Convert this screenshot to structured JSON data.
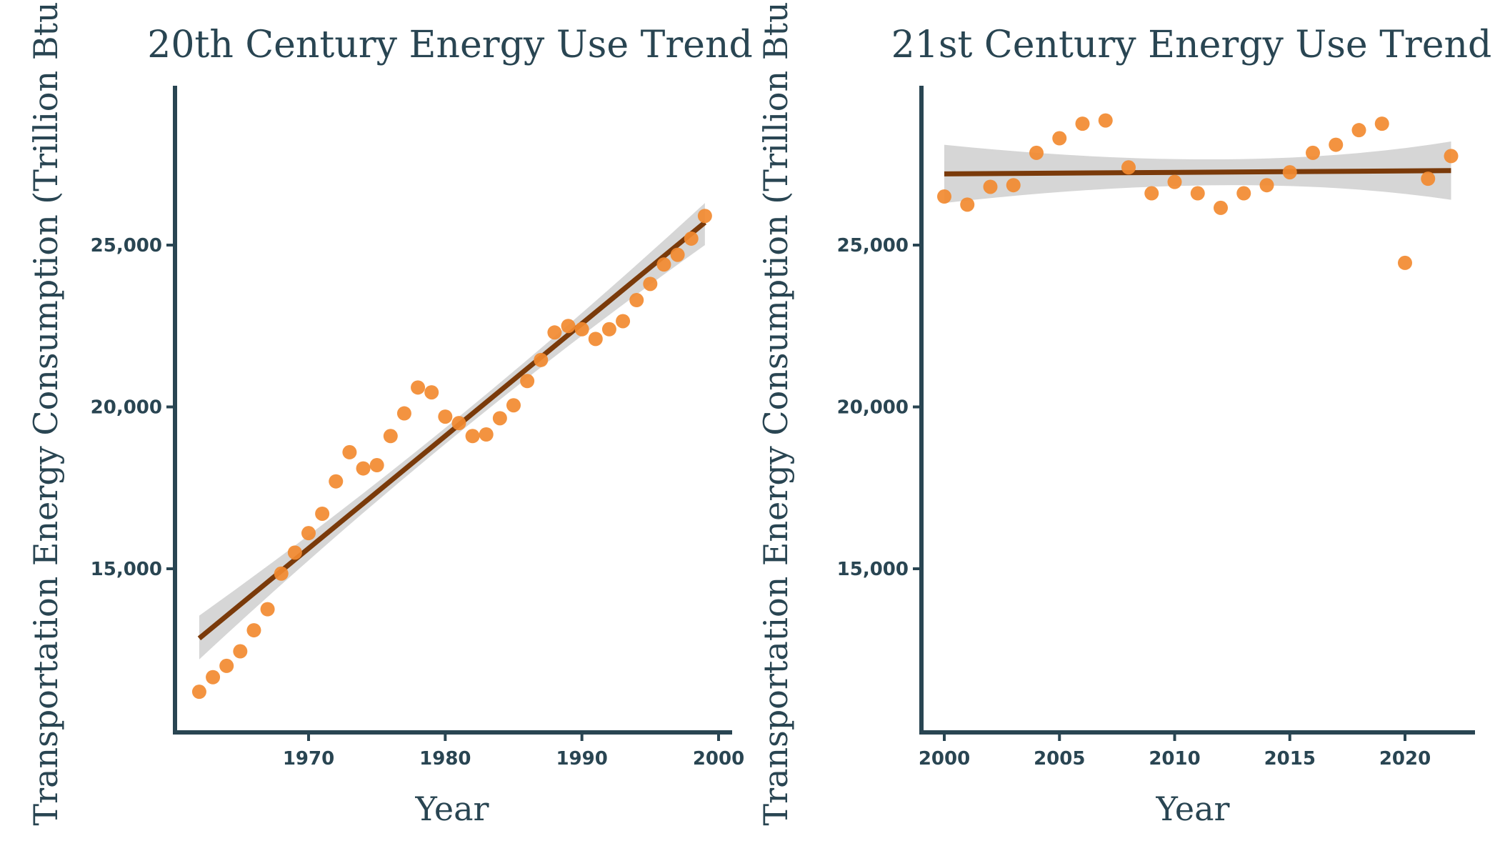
{
  "colors": {
    "point": "#F28A30",
    "trend": "#7A3A0A",
    "band": "#C8C8C8",
    "axis": "#294552",
    "text": "#294552"
  },
  "chart_data": [
    {
      "type": "scatter",
      "title": "20th Century Energy Use Trend",
      "xlabel": "Year",
      "ylabel": "Transportation Energy Consumption (Trillion Btu)",
      "xlim": [
        1961,
        2001
      ],
      "ylim": [
        10000,
        30000
      ],
      "xticks": [
        1970,
        1980,
        1990,
        2000
      ],
      "xtick_labels": [
        "1970",
        "1980",
        "1990",
        "2000"
      ],
      "yticks": [
        15000,
        20000,
        25000
      ],
      "ytick_labels": [
        "15,000",
        "20,000",
        "25,000"
      ],
      "x": [
        1962,
        1963,
        1964,
        1965,
        1966,
        1967,
        1968,
        1969,
        1970,
        1971,
        1972,
        1973,
        1974,
        1975,
        1976,
        1977,
        1978,
        1979,
        1980,
        1981,
        1982,
        1983,
        1984,
        1985,
        1986,
        1987,
        1988,
        1989,
        1990,
        1991,
        1992,
        1993,
        1994,
        1995,
        1996,
        1997,
        1998,
        1999
      ],
      "y": [
        11200,
        11650,
        12000,
        12450,
        13100,
        13750,
        14850,
        15500,
        16100,
        16700,
        17700,
        18600,
        18100,
        18200,
        19100,
        19800,
        20600,
        20450,
        19700,
        19500,
        19100,
        19150,
        19650,
        20050,
        20800,
        21450,
        22300,
        22500,
        22400,
        22100,
        22400,
        22650,
        23300,
        23800,
        24400,
        24700,
        25200,
        25900
      ],
      "trend": {
        "x": [
          1962,
          1999
        ],
        "y": [
          12850,
          25700
        ],
        "band_lower": [
          12200,
          25000
        ],
        "band_upper": [
          13550,
          26300
        ]
      }
    },
    {
      "type": "scatter",
      "title": "21st Century Energy Use Trend",
      "xlabel": "Year",
      "ylabel": "Transportation Energy Consumption (Trillion Btu)",
      "xlim": [
        1999,
        2023
      ],
      "ylim": [
        10000,
        30000
      ],
      "xticks": [
        2000,
        2005,
        2010,
        2015,
        2020
      ],
      "xtick_labels": [
        "2000",
        "2005",
        "2010",
        "2015",
        "2020"
      ],
      "yticks": [
        15000,
        20000,
        25000
      ],
      "ytick_labels": [
        "15,000",
        "20,000",
        "25,000"
      ],
      "x": [
        2000,
        2001,
        2002,
        2003,
        2004,
        2005,
        2006,
        2007,
        2008,
        2009,
        2010,
        2011,
        2012,
        2013,
        2014,
        2015,
        2016,
        2017,
        2018,
        2019,
        2020,
        2021,
        2022
      ],
      "y": [
        26500,
        26250,
        26800,
        26850,
        27850,
        28300,
        28750,
        28850,
        27400,
        26600,
        26950,
        26600,
        26150,
        26600,
        26850,
        27250,
        27850,
        28100,
        28550,
        28750,
        24450,
        27050,
        27750
      ],
      "trend": {
        "x": [
          2000,
          2022
        ],
        "y": [
          27200,
          27300
        ],
        "band_lower": [
          26300,
          26400
        ],
        "band_upper": [
          28100,
          28200
        ],
        "band_mid_x": 2012,
        "band_mid_lower": [
          26850
        ],
        "band_mid_upper": [
          27650
        ]
      }
    }
  ]
}
